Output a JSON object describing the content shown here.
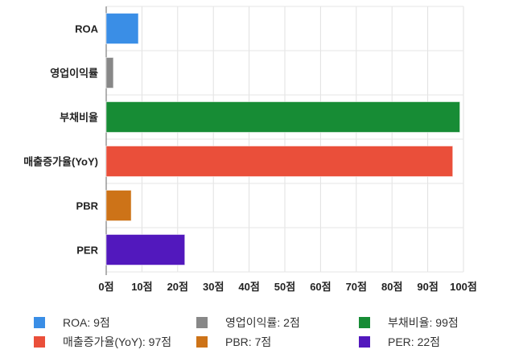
{
  "chart_data": {
    "type": "bar",
    "orientation": "horizontal",
    "categories": [
      "ROA",
      "영업이익률",
      "부채비율",
      "매출증가율(YoY)",
      "PBR",
      "PER"
    ],
    "values": [
      9,
      2,
      99,
      97,
      7,
      22
    ],
    "colors": [
      "#3a8ee6",
      "#888888",
      "#178c35",
      "#ea4f3a",
      "#cd7318",
      "#5218bd"
    ],
    "xlim": [
      0,
      100
    ],
    "xticks": [
      "0점",
      "10점",
      "20점",
      "30점",
      "40점",
      "50점",
      "60점",
      "70점",
      "80점",
      "90점",
      "100점"
    ],
    "grid": true,
    "legend_position": "bottom",
    "legend": [
      "ROA: 9점",
      "영업이익률: 2점",
      "부채비율: 99점",
      "매출증가율(YoY): 97점",
      "PBR: 7점",
      "PER: 22점"
    ]
  }
}
